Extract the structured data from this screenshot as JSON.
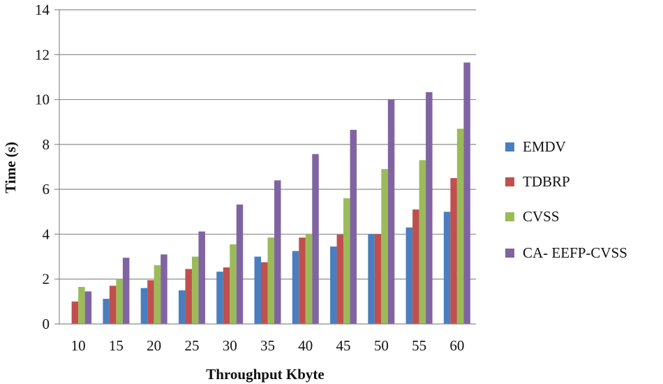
{
  "chart_data": {
    "type": "bar",
    "xlabel": "Throughput Kbyte",
    "ylabel": "Time (s)",
    "ylim": [
      0,
      14
    ],
    "yticks": [
      0,
      2,
      4,
      6,
      8,
      10,
      12,
      14
    ],
    "grid": true,
    "legend_position": "right",
    "categories": [
      "10",
      "15",
      "20",
      "25",
      "30",
      "35",
      "40",
      "45",
      "50",
      "55",
      "60"
    ],
    "series": [
      {
        "name": "EMDV",
        "color": "#4a7ebf",
        "values": [
          0,
          1.12,
          1.6,
          1.5,
          2.33,
          3.0,
          3.25,
          3.45,
          4.0,
          4.3,
          5.0
        ]
      },
      {
        "name": "TDBRP",
        "color": "#c0504d",
        "values": [
          1.0,
          1.7,
          1.95,
          2.45,
          2.52,
          2.75,
          3.85,
          3.98,
          4.0,
          5.1,
          6.5
        ]
      },
      {
        "name": "CVSS",
        "color": "#9bbb59",
        "values": [
          1.65,
          2.0,
          2.62,
          3.0,
          3.55,
          3.85,
          4.02,
          5.6,
          6.9,
          7.3,
          8.7
        ]
      },
      {
        "name": "CA- EEFP-CVSS",
        "color": "#8064a2",
        "values": [
          1.45,
          2.95,
          3.1,
          4.12,
          5.32,
          6.4,
          7.57,
          8.65,
          10.0,
          10.33,
          11.65
        ]
      }
    ]
  }
}
